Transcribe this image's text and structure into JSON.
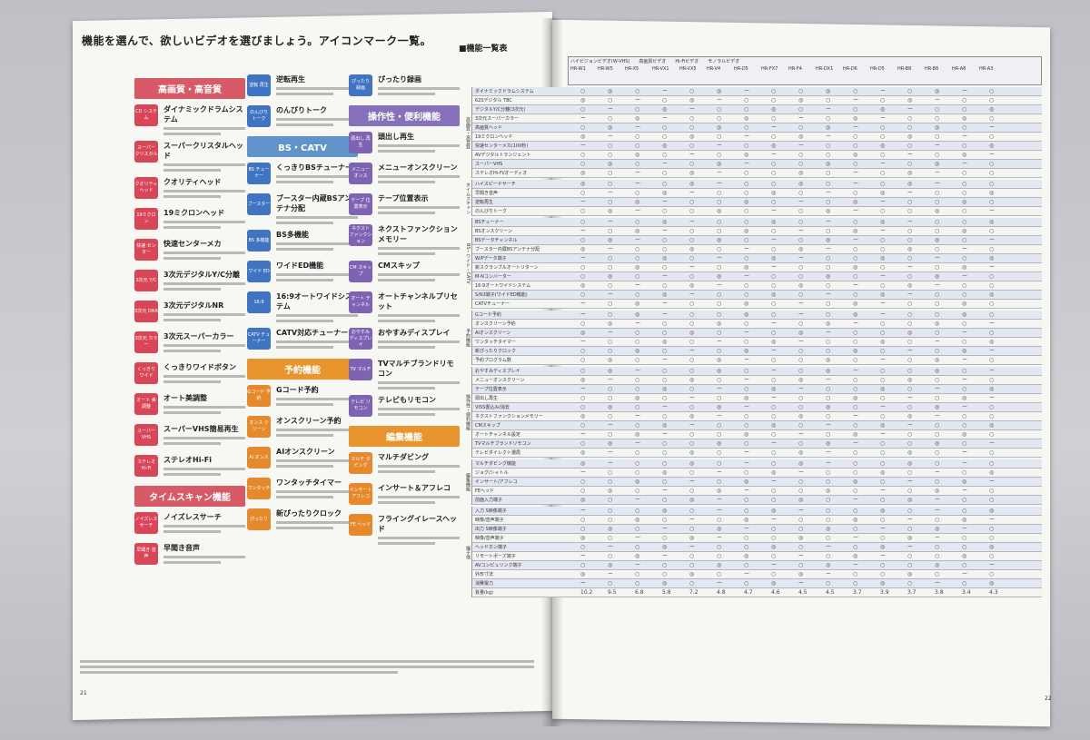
{
  "left": {
    "title": "機能を選んで、欲しいビデオを選びましょう。アイコンマーク一覧。",
    "columns": [
      {
        "sections": [
          {
            "label": "高画質・高音質",
            "color": "red",
            "items": [
              {
                "icon": "CD システム",
                "title": "ダイナミックドラムシステム"
              },
              {
                "icon": "スーパー クリスタル",
                "title": "スーパークリスタルヘッド"
              },
              {
                "icon": "クオリティ ヘッド",
                "title": "クオリティヘッド"
              },
              {
                "icon": "19ミクロン",
                "title": "19ミクロンヘッド"
              },
              {
                "icon": "快速 センター",
                "title": "快速センターメカ"
              },
              {
                "icon": "3次元 Y/C",
                "title": "3次元デジタルY/C分離"
              },
              {
                "icon": "3次元 DNR",
                "title": "3次元デジタルNR"
              },
              {
                "icon": "3次元 カラー",
                "title": "3次元スーパーカラー"
              },
              {
                "icon": "くっきり ワイド",
                "title": "くっきりワイドボタン"
              },
              {
                "icon": "オート 美調整",
                "title": "オート美調整"
              },
              {
                "icon": "スーパー VHS",
                "title": "スーパーVHS簡易再生"
              },
              {
                "icon": "ステレオ Hi-Fi",
                "title": "ステレオHi-Fi"
              }
            ]
          },
          {
            "label": "タイムスキャン機能",
            "color": "red",
            "items": [
              {
                "icon": "ノイズレス サーチ",
                "title": "ノイズレスサーチ"
              },
              {
                "icon": "早聞き 音声",
                "title": "早聞き音声"
              }
            ]
          }
        ]
      },
      {
        "sections": [
          {
            "label": "",
            "color": "",
            "items": [
              {
                "icon": "逆転 再生",
                "title": "逆転再生"
              },
              {
                "icon": "のんびり トーク",
                "title": "のんびりトーク"
              }
            ]
          },
          {
            "label": "BS・CATV",
            "color": "blue",
            "items": [
              {
                "icon": "BS チューナー",
                "title": "くっきりBSチューナー"
              },
              {
                "icon": "ブースター",
                "title": "ブースター内蔵BSアンテナ分配"
              },
              {
                "icon": "BS 多機能",
                "title": "BS多機能"
              },
              {
                "icon": "ワイド ED",
                "title": "ワイドED機能"
              },
              {
                "icon": "16:9",
                "title": "16:9オートワイドシステム"
              },
              {
                "icon": "CATV チューナー",
                "title": "CATV対応チューナー"
              }
            ]
          },
          {
            "label": "予約機能",
            "color": "orange",
            "items": [
              {
                "icon": "Gコード 予約",
                "title": "Gコード予約"
              },
              {
                "icon": "オンス クリーン",
                "title": "オンスクリーン予約"
              },
              {
                "icon": "AI オンス",
                "title": "AIオンスクリーン"
              },
              {
                "icon": "ワンタッチ",
                "title": "ワンタッチタイマー"
              },
              {
                "icon": "ぴったり",
                "title": "新ぴったりクロック"
              }
            ]
          }
        ]
      },
      {
        "sections": [
          {
            "label": "",
            "color": "",
            "items": [
              {
                "icon": "ぴったり 録画",
                "title": "ぴったり録画"
              }
            ]
          },
          {
            "label": "操作性・便利機能",
            "color": "purple",
            "items": [
              {
                "icon": "頭出し 再生",
                "title": "頭出し再生"
              },
              {
                "icon": "メニュー オンス",
                "title": "メニューオンスクリーン"
              },
              {
                "icon": "テープ 位置表示",
                "title": "テープ位置表示"
              },
              {
                "icon": "ネクスト ファンクション",
                "title": "ネクストファンクションメモリー"
              },
              {
                "icon": "CM スキップ",
                "title": "CMスキップ"
              },
              {
                "icon": "オート チャンネル",
                "title": "オートチャンネルプリセット"
              },
              {
                "icon": "おやすみ ディスプレイ",
                "title": "おやすみディスプレイ"
              },
              {
                "icon": "TV マルチ",
                "title": "TVマルチブランドリモコン"
              },
              {
                "icon": "テレビ リモコン",
                "title": "テレビもリモコン"
              }
            ]
          },
          {
            "label": "編集機能",
            "color": "orange",
            "items": [
              {
                "icon": "マルチ ダビング",
                "title": "マルチダビング"
              },
              {
                "icon": "インサート アフレコ",
                "title": "インサート＆アフレコ"
              },
              {
                "icon": "FE ヘッド",
                "title": "フライングイレースヘッド"
              }
            ]
          }
        ]
      }
    ],
    "page_number": "21"
  },
  "right": {
    "title": "■機能一覧表",
    "models": [
      "HR-W1",
      "HR-W5",
      "HR-X5",
      "HR-VX1",
      "HR-VX5",
      "HR-V4",
      "HR-D5",
      "HR-FX7",
      "HR-F4",
      "HR-DX1",
      "HR-D6",
      "HR-D5",
      "HR-B8",
      "HR-B6",
      "HR-A8",
      "HR-A3"
    ],
    "header_groups": [
      "ハイビジョンビデオ(W-VHS)",
      "高画質ビデオ",
      "Hi-Fiビデオ",
      "モノラルビデオ"
    ],
    "groups": [
      {
        "label": "高画質・高音質",
        "rows": [
          "ダイナミックドラムシステム",
          "62Sデジタル TBC",
          "デジタルY/C分離(3次元)",
          "3次元スーパーカラー",
          "高画質ヘッド",
          "19ミクロンヘッド",
          "快速センターメカ(100秒)",
          "AVデジタルトランジェント",
          "スーパーVHS",
          "ステレオHi-Fi/オーディオ"
        ]
      },
      {
        "label": "タイムスキャン",
        "rows": [
          "ハイスピードサーチ",
          "早聞き音声",
          "逆転再生",
          "のんびりトーク"
        ]
      },
      {
        "label": "BS・ワイド・CATV",
        "rows": [
          "BSチューナー",
          "BSオンスクリーン",
          "BSデータチャンネル",
          "ブースター内蔵BSアンテナ分配",
          "W/Pデータ端子",
          "新スクランブルオートリターン",
          "M-Nコンバーター",
          "16:9オートワイドシステム",
          "S/N3端子(ワイドED機能)",
          "CATVチューナー"
        ]
      },
      {
        "label": "予約機能",
        "rows": [
          "Gコード予約",
          "オンスクリーン予約",
          "AIオンスクリーン",
          "ワンタッチタイマー",
          "新ぴったりクロック",
          "予約プログラム数"
        ]
      },
      {
        "label": "操作性・便利機能",
        "rows": [
          "おやすみディスプレイ",
          "メニューオンスクリーン",
          "テープ位置表示",
          "頭出し再生",
          "VISS書込み/消去",
          "ネクストファンクションメモリー",
          "CMスキップ",
          "オートチャンネル設定",
          "TVマルチブランドリモコン",
          "テレビダイレクト選局"
        ]
      },
      {
        "label": "編集機能",
        "rows": [
          "マルチダビング機能",
          "ジョグ/シャトル",
          "インサート/アフレコ",
          "FEヘッド",
          "前面入力端子"
        ]
      },
      {
        "label": "端子他",
        "rows": [
          "入力 S映像端子",
          "映像/音声端子",
          "出力 S映像端子",
          "映像/音声端子",
          "ヘッドホン端子",
          "リモートポーズ端子",
          "AVコンピュリンク端子",
          "外形寸法",
          "消費電力",
          "質量(kg)"
        ]
      }
    ],
    "cell_values": [
      "○",
      "◎",
      "○",
      "ー",
      "○",
      "◎",
      "ー",
      "○"
    ],
    "weights": [
      "10.2",
      "9.5",
      "6.8",
      "5.8",
      "7.2",
      "4.8",
      "4.7",
      "4.6",
      "4.5",
      "4.5",
      "3.7",
      "3.9",
      "3.7",
      "3.8",
      "3.4",
      "4.3"
    ],
    "page_number": "22"
  }
}
